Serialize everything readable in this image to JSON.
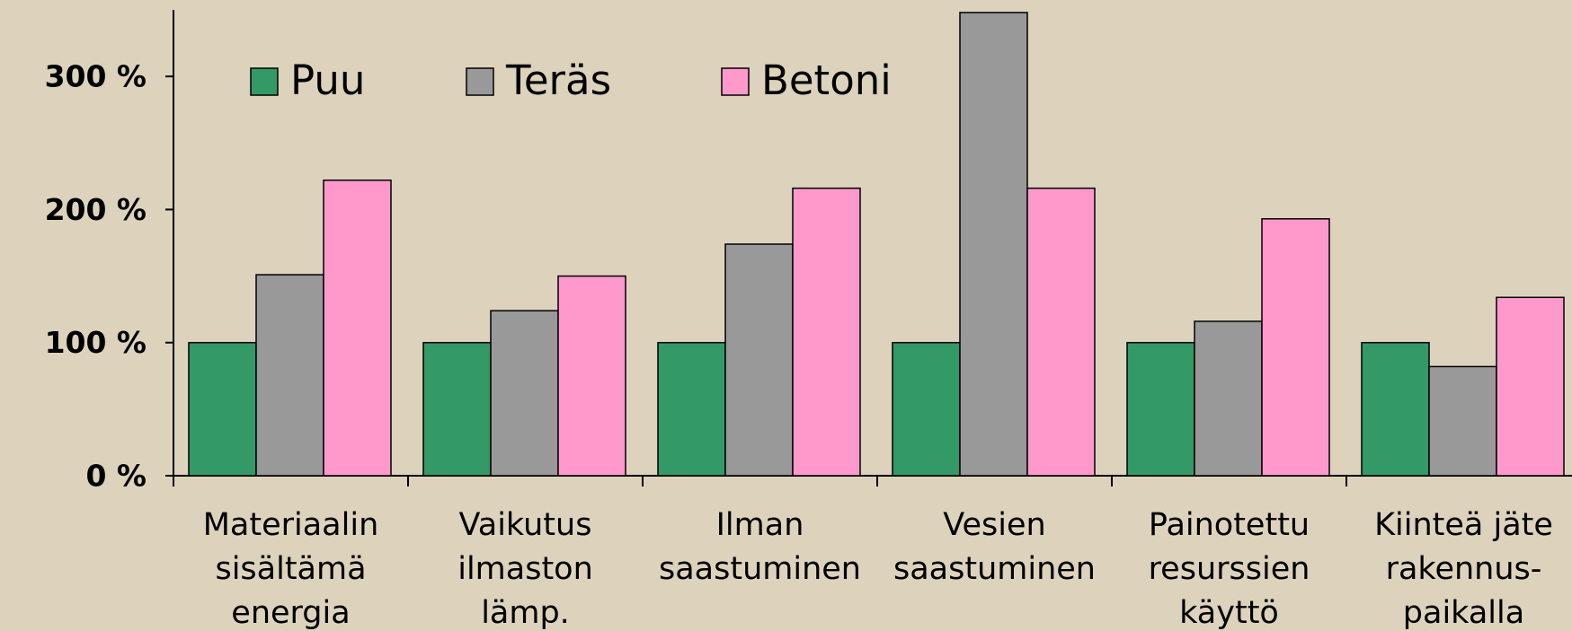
{
  "chart_data": {
    "type": "bar",
    "categories": [
      [
        "Materiaalin",
        "sisältämä",
        "energia"
      ],
      [
        "Vaikutus",
        "ilmaston",
        "lämp."
      ],
      [
        "Ilman",
        "saastuminen"
      ],
      [
        "Vesien",
        "saastuminen"
      ],
      [
        "Painotettu",
        "resurssien",
        "käyttö"
      ],
      [
        "Kiinteä jäte",
        "rakennus-",
        "paikalla"
      ]
    ],
    "series": [
      {
        "name": "Puu",
        "color": "#339966",
        "values": [
          100,
          100,
          100,
          100,
          100,
          100
        ]
      },
      {
        "name": "Teräs",
        "color": "#999999",
        "values": [
          151,
          124,
          174,
          348,
          116,
          82
        ]
      },
      {
        "name": "Betoni",
        "color": "#ff99cc",
        "values": [
          222,
          150,
          216,
          216,
          193,
          134
        ]
      }
    ],
    "ylim": [
      0,
      350
    ],
    "yticks": [
      {
        "value": 0,
        "label": "0 %"
      },
      {
        "value": 100,
        "label": "100 %"
      },
      {
        "value": 200,
        "label": "200 %"
      },
      {
        "value": 300,
        "label": "300 %"
      }
    ],
    "legend": "top-left"
  }
}
